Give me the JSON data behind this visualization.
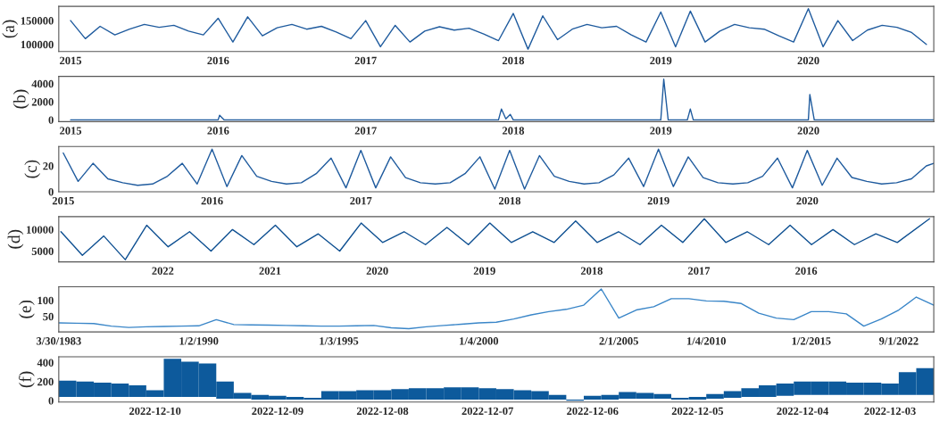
{
  "chart_data": [
    {
      "type": "line",
      "ylabel": "(a)",
      "xlim": [
        2014.92,
        2020.85
      ],
      "xticks": [
        2015,
        2016,
        2017,
        2018,
        2019,
        2020
      ],
      "ylim": [
        85000,
        180000
      ],
      "yticks": [
        100000,
        150000
      ],
      "series": [
        {
          "color": "#1f5b9e",
          "x": [
            2015.0,
            2015.1,
            2015.2,
            2015.3,
            2015.4,
            2015.5,
            2015.6,
            2015.7,
            2015.8,
            2015.9,
            2016.0,
            2016.1,
            2016.2,
            2016.3,
            2016.4,
            2016.5,
            2016.6,
            2016.7,
            2016.8,
            2016.9,
            2017.0,
            2017.1,
            2017.2,
            2017.3,
            2017.4,
            2017.5,
            2017.6,
            2017.7,
            2017.8,
            2017.9,
            2018.0,
            2018.1,
            2018.2,
            2018.3,
            2018.4,
            2018.5,
            2018.6,
            2018.7,
            2018.8,
            2018.9,
            2019.0,
            2019.1,
            2019.2,
            2019.3,
            2019.4,
            2019.5,
            2019.6,
            2019.7,
            2019.8,
            2019.9,
            2020.0,
            2020.1,
            2020.2,
            2020.3,
            2020.4,
            2020.5,
            2020.6,
            2020.7,
            2020.8
          ],
          "values": [
            150000,
            112000,
            138000,
            120000,
            132000,
            142000,
            136000,
            140000,
            128000,
            120000,
            155000,
            105000,
            158000,
            118000,
            135000,
            142000,
            132000,
            138000,
            126000,
            112000,
            150000,
            95000,
            140000,
            105000,
            128000,
            137000,
            130000,
            134000,
            122000,
            108000,
            165000,
            90000,
            160000,
            110000,
            132000,
            142000,
            135000,
            138000,
            120000,
            105000,
            168000,
            95000,
            170000,
            105000,
            128000,
            142000,
            135000,
            132000,
            118000,
            105000,
            175000,
            95000,
            150000,
            108000,
            130000,
            140000,
            136000,
            125000,
            100000
          ]
        }
      ]
    },
    {
      "type": "line",
      "ylabel": "(b)",
      "xlim": [
        2014.92,
        2020.85
      ],
      "xticks": [
        2015,
        2016,
        2017,
        2018,
        2019,
        2020
      ],
      "ylim": [
        -200,
        4800
      ],
      "yticks": [
        0,
        2000,
        4000
      ],
      "series": [
        {
          "color": "#1f5b9e",
          "x": [
            2015.0,
            2016.0,
            2016.01,
            2016.04,
            2017.9,
            2017.92,
            2017.95,
            2017.98,
            2018.0,
            2019.0,
            2019.02,
            2019.05,
            2019.18,
            2019.2,
            2019.22,
            2020.0,
            2020.01,
            2020.04,
            2020.85
          ],
          "values": [
            0,
            0,
            500,
            0,
            0,
            1200,
            100,
            600,
            0,
            0,
            4500,
            0,
            0,
            1200,
            0,
            0,
            2800,
            0,
            0
          ]
        }
      ]
    },
    {
      "type": "line",
      "ylabel": "(c)",
      "xlim": [
        2014.97,
        2020.85
      ],
      "xticks": [
        2015,
        2016,
        2017,
        2018,
        2019,
        2020
      ],
      "ylim": [
        0,
        35
      ],
      "yticks": [
        0,
        20
      ],
      "series": [
        {
          "color": "#1f5b9e",
          "x": [
            2015.0,
            2015.1,
            2015.2,
            2015.3,
            2015.4,
            2015.5,
            2015.6,
            2015.7,
            2015.8,
            2015.9,
            2016.0,
            2016.1,
            2016.2,
            2016.3,
            2016.4,
            2016.5,
            2016.6,
            2016.7,
            2016.8,
            2016.9,
            2017.0,
            2017.1,
            2017.2,
            2017.3,
            2017.4,
            2017.5,
            2017.6,
            2017.7,
            2017.8,
            2017.9,
            2018.0,
            2018.1,
            2018.2,
            2018.3,
            2018.4,
            2018.5,
            2018.6,
            2018.7,
            2018.8,
            2018.9,
            2019.0,
            2019.1,
            2019.2,
            2019.3,
            2019.4,
            2019.5,
            2019.6,
            2019.7,
            2019.8,
            2019.9,
            2020.0,
            2020.1,
            2020.2,
            2020.3,
            2020.4,
            2020.5,
            2020.6,
            2020.7,
            2020.8,
            2020.85
          ],
          "values": [
            30,
            8,
            22,
            10,
            7,
            5,
            6,
            12,
            22,
            6,
            33,
            4,
            28,
            12,
            8,
            6,
            7,
            14,
            26,
            3,
            32,
            3,
            27,
            11,
            7,
            6,
            7,
            14,
            27,
            2,
            32,
            2,
            28,
            12,
            8,
            6,
            7,
            13,
            26,
            4,
            33,
            4,
            27,
            11,
            7,
            6,
            7,
            12,
            26,
            3,
            32,
            5,
            26,
            11,
            8,
            6,
            7,
            10,
            20,
            22
          ]
        }
      ]
    },
    {
      "type": "line",
      "ylabel": "(d)",
      "xlim": [
        2022.97,
        2014.81
      ],
      "xticks": [
        2022,
        2021,
        2020,
        2019,
        2018,
        2017,
        2016
      ],
      "ylim": [
        2500,
        13000
      ],
      "yticks": [
        5000,
        10000
      ],
      "series": [
        {
          "color": "#0d4f91",
          "x": [
            2022.95,
            2022.75,
            2022.55,
            2022.35,
            2022.15,
            2021.95,
            2021.75,
            2021.55,
            2021.35,
            2021.15,
            2020.95,
            2020.75,
            2020.55,
            2020.35,
            2020.15,
            2019.95,
            2019.75,
            2019.55,
            2019.35,
            2019.15,
            2018.95,
            2018.75,
            2018.55,
            2018.35,
            2018.15,
            2017.95,
            2017.75,
            2017.55,
            2017.35,
            2017.15,
            2016.95,
            2016.75,
            2016.55,
            2016.35,
            2016.15,
            2015.95,
            2015.75,
            2015.55,
            2015.35,
            2015.15,
            2014.85
          ],
          "values": [
            9500,
            4000,
            8500,
            3000,
            11000,
            6000,
            9500,
            5000,
            10000,
            6500,
            11000,
            6000,
            9000,
            5000,
            11500,
            7000,
            9500,
            6500,
            10500,
            6500,
            11500,
            7000,
            9500,
            7000,
            12000,
            7000,
            9500,
            6500,
            11000,
            7000,
            12500,
            7000,
            9500,
            6500,
            11000,
            6500,
            10000,
            6500,
            9000,
            7000,
            12500
          ]
        }
      ]
    },
    {
      "type": "line",
      "ylabel": "(e)",
      "categories": [
        "3/30/1983",
        null,
        null,
        null,
        null,
        null,
        null,
        null,
        "1/2/1990",
        null,
        null,
        null,
        null,
        null,
        null,
        null,
        "1/3/1995",
        null,
        null,
        null,
        null,
        null,
        null,
        null,
        "1/4/2000",
        null,
        null,
        null,
        null,
        null,
        null,
        null,
        "2/1/2005",
        null,
        null,
        null,
        null,
        "1/4/2010",
        null,
        null,
        null,
        null,
        null,
        "1/2/2015",
        null,
        null,
        null,
        null,
        "9/1/2022",
        null,
        null
      ],
      "ylim": [
        2,
        142
      ],
      "yticks": [
        50,
        100
      ],
      "series": [
        {
          "color": "#3a86c8",
          "values": [
            30,
            29,
            28,
            20,
            16,
            18,
            19,
            20,
            21,
            40,
            25,
            24,
            23,
            22,
            21,
            20,
            20,
            21,
            22,
            15,
            12,
            18,
            22,
            26,
            30,
            32,
            42,
            55,
            65,
            72,
            85,
            135,
            45,
            70,
            80,
            105,
            105,
            98,
            97,
            90,
            60,
            45,
            40,
            65,
            65,
            58,
            20,
            42,
            70,
            110,
            85
          ]
        }
      ]
    },
    {
      "type": "bar",
      "ylabel": "(f)",
      "categories": [
        null,
        null,
        null,
        null,
        null,
        "2022-12-10",
        null,
        null,
        null,
        null,
        null,
        null,
        "2022-12-09",
        null,
        null,
        null,
        null,
        null,
        "2022-12-08",
        null,
        null,
        null,
        null,
        null,
        "2022-12-07",
        null,
        null,
        null,
        null,
        null,
        "2022-12-06",
        null,
        null,
        null,
        null,
        null,
        "2022-12-05",
        null,
        null,
        null,
        null,
        null,
        "2022-12-04",
        null,
        null,
        null,
        null,
        "2022-12-03",
        null,
        null
      ],
      "ylim": [
        -15,
        460
      ],
      "yticks": [
        0,
        200,
        400
      ],
      "series": [
        {
          "color": "#0d5a9c",
          "values": [
            170,
            160,
            150,
            140,
            120,
            70,
            400,
            370,
            350,
            180,
            60,
            50,
            40,
            30,
            20,
            90,
            90,
            100,
            100,
            110,
            120,
            120,
            130,
            130,
            120,
            110,
            100,
            90,
            50,
            10,
            40,
            50,
            70,
            60,
            50,
            20,
            30,
            50,
            70,
            90,
            120,
            130,
            140,
            140,
            140,
            130,
            130,
            120,
            240,
            280
          ],
          "base": [
            40,
            40,
            40,
            40,
            40,
            40,
            40,
            40,
            40,
            20,
            20,
            10,
            10,
            10,
            10,
            10,
            10,
            10,
            10,
            10,
            10,
            10,
            10,
            10,
            10,
            10,
            10,
            10,
            10,
            0,
            10,
            10,
            20,
            20,
            20,
            10,
            10,
            20,
            30,
            40,
            40,
            50,
            60,
            60,
            60,
            60,
            60,
            60,
            60,
            60
          ]
        }
      ]
    }
  ]
}
